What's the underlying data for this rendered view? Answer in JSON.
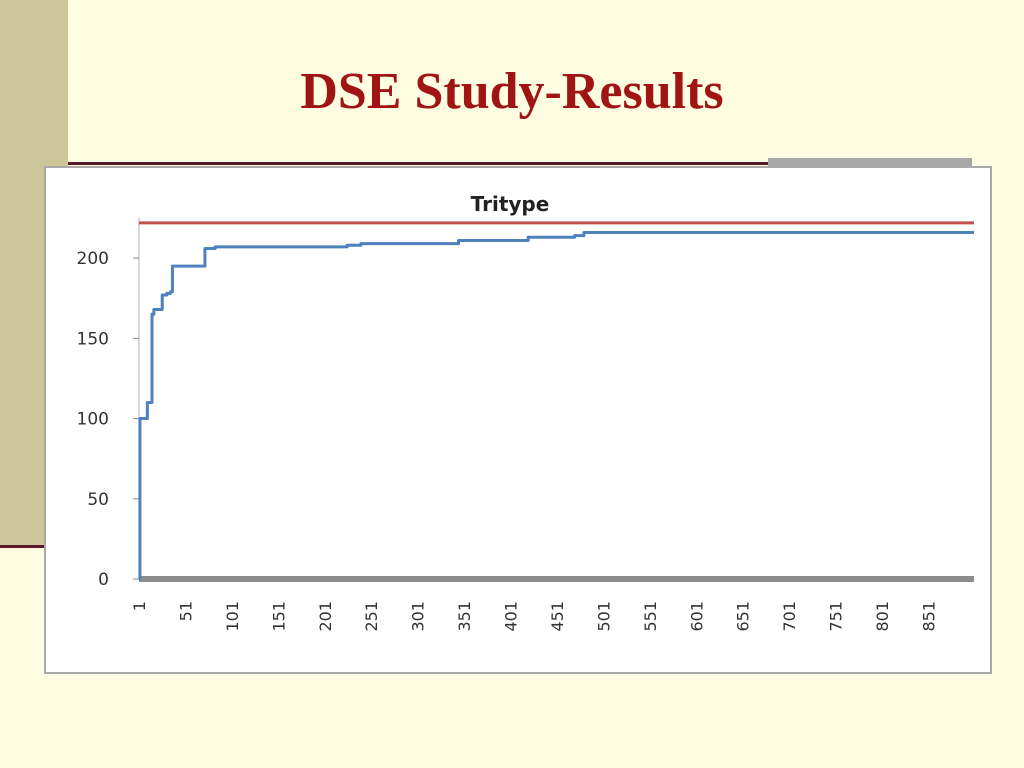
{
  "slide": {
    "title": "DSE Study-Results"
  },
  "colors": {
    "background": "#FEFCE1",
    "side_bar": "#CCC79A",
    "title": "#A01414",
    "series_line": "#4F81BD",
    "reference_line": "#C0504D"
  },
  "chart_data": {
    "type": "line",
    "title": "Tritype",
    "xlabel": "",
    "ylabel": "",
    "xlim": [
      1,
      900
    ],
    "ylim": [
      0,
      225
    ],
    "yticks": [
      0,
      50,
      100,
      150,
      200
    ],
    "xticks": [
      1,
      51,
      101,
      151,
      201,
      251,
      301,
      351,
      401,
      451,
      501,
      551,
      601,
      651,
      701,
      751,
      801,
      851
    ],
    "grid": false,
    "legend": "none",
    "series": [
      {
        "type": "step",
        "x": [
          1,
          2,
          4,
          10,
          12,
          15,
          17,
          20,
          26,
          28,
          31,
          35,
          37,
          40,
          47,
          51,
          70,
          72,
          75,
          83,
          220,
          225,
          240,
          340,
          345,
          410,
          420,
          470,
          480,
          500,
          900
        ],
        "y": [
          0,
          100,
          100,
          110,
          110,
          165,
          168,
          168,
          177,
          177,
          178,
          179,
          195,
          195,
          195,
          195,
          195,
          206,
          206,
          207,
          207,
          208,
          209,
          209,
          211,
          211,
          213,
          214,
          216,
          216,
          216
        ]
      },
      {
        "type": "reference",
        "x": [
          1,
          900
        ],
        "y": [
          222,
          222
        ]
      }
    ]
  }
}
